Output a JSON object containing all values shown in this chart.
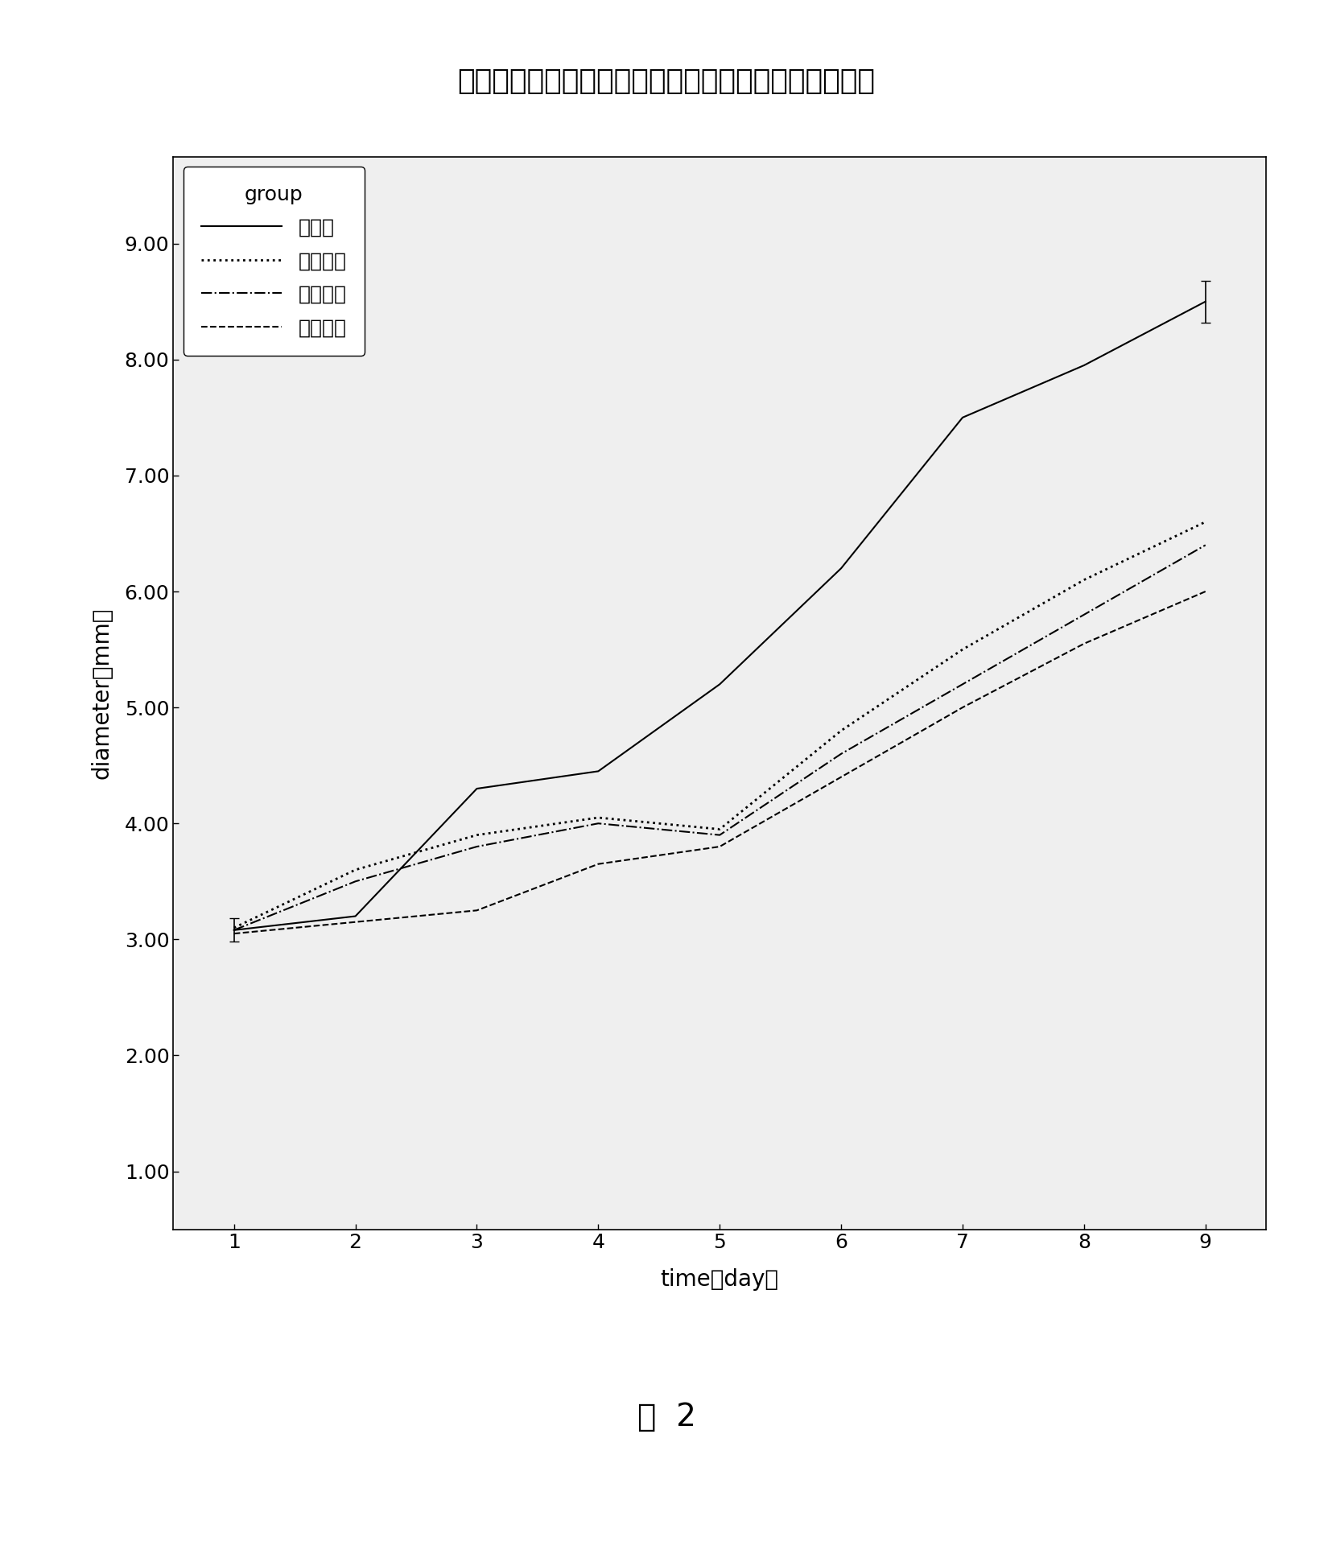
{
  "title": "时间因素与分组因素对右侧肿瘤直径影响的交互轮廓图",
  "xlabel": "time（day）",
  "ylabel": "diameter（mm）",
  "caption": "图  2",
  "legend_title": "group",
  "legend_entries": [
    "模型组",
    "低剂量组",
    "中剂量组",
    "高剂量组"
  ],
  "x": [
    1,
    2,
    3,
    4,
    5,
    6,
    7,
    8,
    9
  ],
  "series": {
    "模型组": [
      3.08,
      3.2,
      4.3,
      4.45,
      5.2,
      6.2,
      7.5,
      7.95,
      8.5
    ],
    "低剂量组": [
      3.1,
      3.6,
      3.9,
      4.05,
      3.95,
      4.8,
      5.5,
      6.1,
      6.6
    ],
    "中剂量组": [
      3.08,
      3.5,
      3.8,
      4.0,
      3.9,
      4.6,
      5.2,
      5.8,
      6.4
    ],
    "高剂量组": [
      3.05,
      3.15,
      3.25,
      3.65,
      3.8,
      4.4,
      5.0,
      5.55,
      6.0
    ]
  },
  "error_bar_day1_size": 0.1,
  "error_bar_day9_size": 0.18,
  "line_styles": {
    "模型组": {
      "linestyle": "solid",
      "linewidth": 1.5,
      "color": "black"
    },
    "低剂量组": {
      "linestyle": "dotted",
      "linewidth": 2.0,
      "color": "black"
    },
    "中剂量组": {
      "linestyle": "dashdot",
      "linewidth": 1.5,
      "color": "black"
    },
    "高剂量组": {
      "linestyle": "dashed",
      "linewidth": 1.5,
      "color": "black"
    }
  },
  "ylim": [
    0.5,
    9.75
  ],
  "yticks": [
    1.0,
    2.0,
    3.0,
    4.0,
    5.0,
    6.0,
    7.0,
    8.0,
    9.0
  ],
  "xlim": [
    0.5,
    9.5
  ],
  "xticks": [
    1,
    2,
    3,
    4,
    5,
    6,
    7,
    8,
    9
  ],
  "plot_bg_color": "#efefef",
  "title_fontsize": 26,
  "label_fontsize": 20,
  "tick_fontsize": 18,
  "legend_fontsize": 18,
  "caption_fontsize": 28
}
